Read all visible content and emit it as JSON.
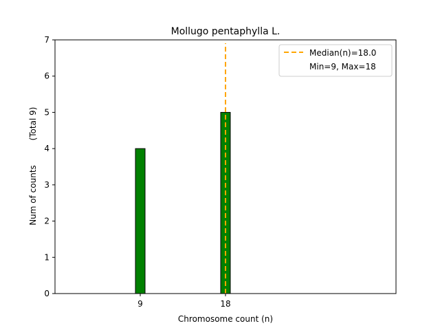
{
  "chart_data": {
    "type": "bar",
    "title": "Mollugo pentaphylla L.",
    "xlabel": "Chromosome count (n)",
    "ylabel": "Num of counts",
    "ylabel_secondary": "(Total 9)",
    "x": [
      9,
      18
    ],
    "values": [
      4,
      5
    ],
    "xticks": [
      9,
      18
    ],
    "yticks": [
      0,
      1,
      2,
      3,
      4,
      5,
      6,
      7
    ],
    "xlim": [
      0,
      36
    ],
    "ylim": [
      0,
      7
    ],
    "bar_color": "#008000",
    "bar_edge_color": "#000000",
    "median": {
      "value": 18.0,
      "label": "Median(n)=18.0",
      "color": "#FFA500"
    },
    "legend": {
      "position": "top-right",
      "entries": [
        "Median(n)=18.0",
        "Min=9, Max=18"
      ]
    },
    "grid": false
  }
}
